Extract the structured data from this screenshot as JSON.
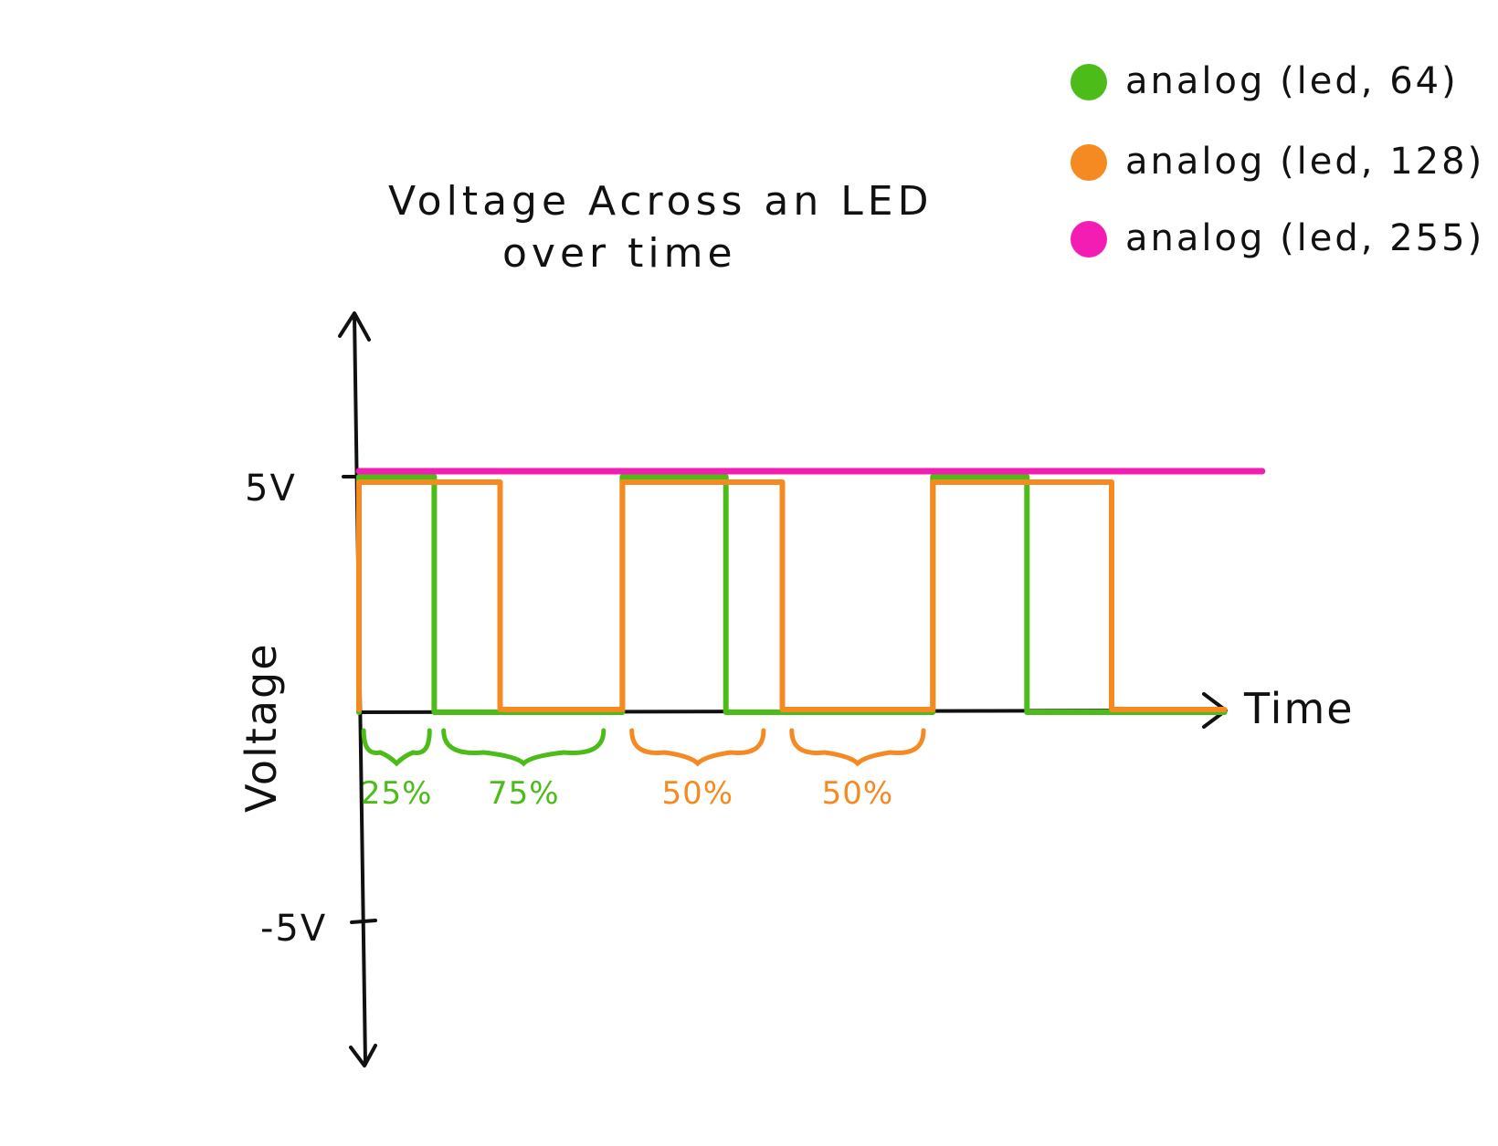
{
  "chart_data": {
    "type": "line",
    "title_line1": "Voltage Across an LED",
    "title_line2": "over time",
    "xlabel": "Time",
    "ylabel": "Voltage",
    "y_ticks": [
      "5V",
      "-5V"
    ],
    "ylim": [
      -5,
      5
    ],
    "xlim": [
      0,
      9
    ],
    "grid": false,
    "legend_placement": "top-right",
    "series": [
      {
        "name": "analog (led, 64)",
        "color": "#4cbc19",
        "x": [
          0,
          0,
          0.8,
          0.8,
          2.8,
          2.8,
          3.9,
          3.9,
          6.1,
          6.1,
          7.1,
          7.1,
          9.2
        ],
        "y": [
          0,
          5,
          5,
          0,
          0,
          5,
          5,
          0,
          0,
          5,
          5,
          0,
          0
        ]
      },
      {
        "name": "analog (led, 128)",
        "color": "#f58a22",
        "x": [
          0,
          0,
          1.5,
          1.5,
          2.8,
          2.8,
          4.5,
          4.5,
          6.1,
          6.1,
          8.0,
          8.0,
          9.2
        ],
        "y": [
          0,
          5,
          5,
          0,
          0,
          5,
          5,
          0,
          0,
          5,
          5,
          0,
          0
        ]
      },
      {
        "name": "analog (led, 255)",
        "color": "#f31db3",
        "x": [
          0,
          9.6
        ],
        "y": [
          5,
          5
        ]
      }
    ],
    "annotations": [
      {
        "label": "25%",
        "color": "#4cbc19",
        "x_range": [
          0.05,
          0.75
        ]
      },
      {
        "label": "75%",
        "color": "#4cbc19",
        "x_range": [
          0.9,
          2.6
        ]
      },
      {
        "label": "50%",
        "color": "#f58a22",
        "x_range": [
          2.9,
          4.3
        ]
      },
      {
        "label": "50%",
        "color": "#f58a22",
        "x_range": [
          4.6,
          6.0
        ]
      }
    ]
  }
}
